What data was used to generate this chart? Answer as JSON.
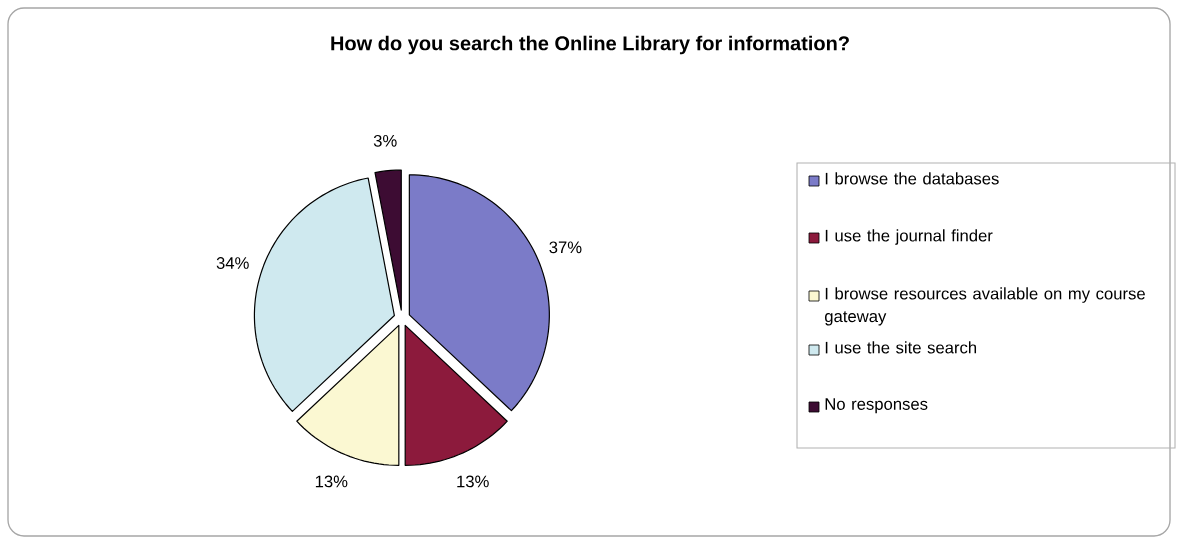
{
  "chart_data": {
    "type": "pie",
    "title": "How do you search the Online Library for information?",
    "categories": [
      "I browse the databases",
      "I use the journal finder",
      "I browse resources available on my course gateway",
      "I use the site search",
      "No responses"
    ],
    "values": [
      37,
      13,
      13,
      34,
      3
    ],
    "value_labels": [
      "37%",
      "13%",
      "13%",
      "34%",
      "3%"
    ],
    "colors": [
      "#7b7bc8",
      "#8c1a3c",
      "#fbf8d2",
      "#cfe9ef",
      "#3d0c33"
    ],
    "legend": "right"
  }
}
